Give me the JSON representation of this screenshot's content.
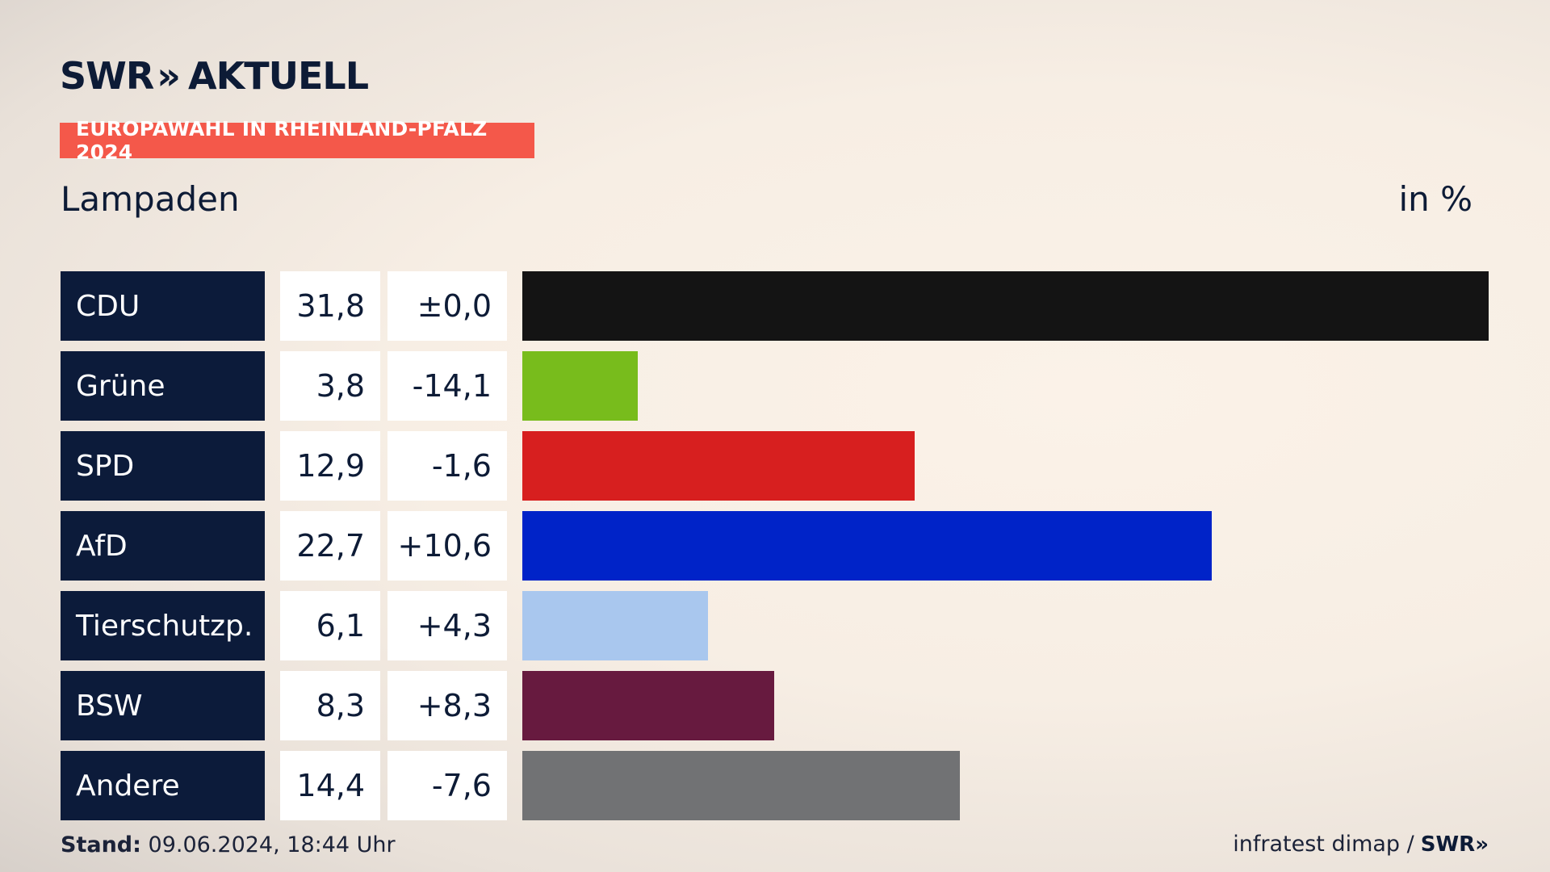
{
  "brand": {
    "name": "SWR",
    "chevrons": "»",
    "section": "AKTUELL"
  },
  "badge": "EUROPAWAHL IN RHEINLAND-PFALZ 2024",
  "region": "Lampaden",
  "unit": "in %",
  "colors": {
    "CDU": "#141414",
    "Grüne": "#78bc1c",
    "SPD": "#d71f1f",
    "AfD": "#0023c8",
    "Tierschutzp.": "#a9c7ee",
    "BSW": "#671a3f",
    "Andere": "#717274",
    "badge": "#f4584a",
    "label_bg": "#0c1b3a"
  },
  "chart_data": {
    "type": "bar",
    "orientation": "horizontal",
    "categories": [
      "CDU",
      "Grüne",
      "SPD",
      "AfD",
      "Tierschutzp.",
      "BSW",
      "Andere"
    ],
    "values": [
      31.8,
      3.8,
      12.9,
      22.7,
      6.1,
      8.3,
      14.4
    ],
    "value_labels": [
      "31,8",
      "3,8",
      "12,9",
      "22,7",
      "6,1",
      "8,3",
      "14,4"
    ],
    "change_labels": [
      "±0,0",
      "-14,1",
      "-1,6",
      "+10,6",
      "+4,3",
      "+8,3",
      "-7,6"
    ],
    "changes": [
      0.0,
      -14.1,
      -1.6,
      10.6,
      4.3,
      8.3,
      -7.6
    ],
    "xlim": [
      0,
      31.8
    ],
    "ylabel": "in %"
  },
  "footer": {
    "stand_label": "Stand:",
    "stand_value": "09.06.2024, 18:44 Uhr",
    "source": "infratest dimap /",
    "source_brand": "SWR",
    "source_chevrons": "»"
  }
}
